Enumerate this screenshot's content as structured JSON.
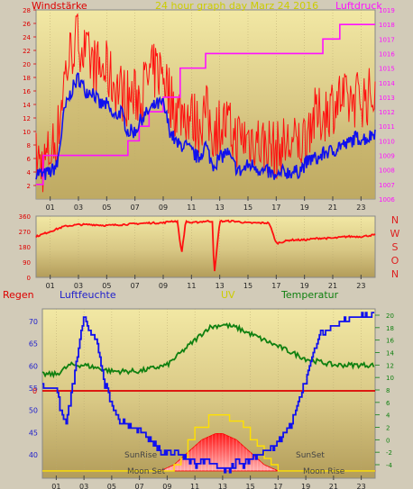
{
  "header": {
    "title": "24 hour graph day   Marz 24 2016",
    "wind_label": "Windstärke",
    "pressure_label": "Luftdruck"
  },
  "wind_axis": {
    "ticks": [
      "2",
      "4",
      "6",
      "8",
      "10",
      "12",
      "14",
      "16",
      "18",
      "20",
      "22",
      "24",
      "26",
      "28"
    ]
  },
  "pressure_axis": {
    "ticks": [
      "1006",
      "1007",
      "1008",
      "1009",
      "1010",
      "1011",
      "1012",
      "1013",
      "1014",
      "1015",
      "1016",
      "1017",
      "1018",
      "1019"
    ]
  },
  "hour_ticks": [
    "01",
    "03",
    "05",
    "07",
    "09",
    "11",
    "13",
    "15",
    "17",
    "19",
    "21",
    "23"
  ],
  "direction_axis": {
    "ticks": [
      "360",
      "270",
      "180",
      "90",
      "0"
    ],
    "compass": [
      "N",
      "W",
      "S",
      "O",
      "N"
    ]
  },
  "bottom_labels": {
    "rain": "Regen",
    "humidity": "Luftfeuchte",
    "uv": "UV",
    "temperature": "Temperatur",
    "sunrise": "SunRise",
    "sunset": "SunSet",
    "moonset": "Moon Set",
    "moonrise": "Moon Rise"
  },
  "humidity_axis": {
    "ticks": [
      "70",
      "65",
      "60",
      "55",
      "50",
      "45",
      "40"
    ],
    "rain_zero": "0"
  },
  "temperature_axis": {
    "ticks": [
      "20",
      "18",
      "16",
      "14",
      "12",
      "10",
      "8",
      "6",
      "4",
      "2",
      "0",
      "-2",
      "-4"
    ]
  },
  "colors": {
    "wind_avg": "#1010ee",
    "wind_gust": "#ff1010",
    "pressure": "#ff10ff",
    "direction": "#ff1010",
    "humidity": "#1010ee",
    "temperature": "#108010",
    "uv": "#ffe000",
    "solar": "#ff2020",
    "rain": "#dd0000",
    "compass": "#dd2020",
    "temp_label": "#108010",
    "humidity_label": "#2020cc",
    "uv_label": "#cccc00",
    "rain_label": "#dd0000"
  },
  "chart_data": [
    {
      "type": "line",
      "title": "24 hour graph day   Marz 24 2016",
      "x_unit": "hour",
      "xlim": [
        0,
        24
      ],
      "series": [
        {
          "name": "Windstärke",
          "axis": "left",
          "ylim": [
            0,
            28
          ],
          "x": [
            0,
            0.5,
            1,
            1.5,
            2,
            2.5,
            3,
            3.5,
            4,
            4.5,
            5,
            5.5,
            6,
            6.5,
            7,
            7.5,
            8,
            8.5,
            9,
            9.5,
            10,
            10.5,
            11,
            11.5,
            12,
            12.5,
            13,
            13.5,
            14,
            14.5,
            15,
            15.5,
            16,
            16.5,
            17,
            17.5,
            18,
            18.5,
            19,
            19.5,
            20,
            20.5,
            21,
            21.5,
            22,
            22.5,
            23,
            23.5,
            24
          ],
          "values": [
            4,
            3.5,
            4,
            5,
            13,
            16,
            18,
            16,
            16,
            14,
            14,
            12,
            13,
            10,
            10,
            12,
            13,
            14,
            14,
            10,
            8,
            8,
            7,
            6,
            8,
            5,
            6,
            7,
            5,
            4,
            5,
            5,
            4,
            4,
            3,
            4,
            4,
            4,
            5,
            6,
            6,
            7,
            7,
            8,
            8,
            9,
            9,
            9,
            10
          ]
        },
        {
          "name": "Wind gust",
          "axis": "left",
          "ylim": [
            0,
            28
          ],
          "x": [
            0,
            0.5,
            1,
            1.5,
            2,
            2.5,
            3,
            3.5,
            4,
            4.5,
            5,
            5.5,
            6,
            6.5,
            7,
            7.5,
            8,
            8.5,
            9,
            9.5,
            10,
            10.5,
            11,
            11.5,
            12,
            12.5,
            13,
            13.5,
            14,
            14.5,
            15,
            15.5,
            16,
            16.5,
            17,
            17.5,
            18,
            18.5,
            19,
            19.5,
            20,
            20.5,
            21,
            21.5,
            22,
            22.5,
            23,
            23.5,
            24
          ],
          "values": [
            6,
            5,
            7,
            9,
            18,
            22,
            24,
            21,
            20,
            19,
            19,
            17,
            16,
            15,
            15,
            16,
            18,
            19,
            19,
            15,
            13,
            13,
            12,
            11,
            13,
            10,
            11,
            11,
            9,
            9,
            9,
            9,
            8,
            8,
            7,
            8,
            8,
            8,
            9,
            12,
            12,
            13,
            14,
            15,
            14,
            15,
            15,
            15,
            16
          ]
        },
        {
          "name": "Luftdruck",
          "axis": "right",
          "ylim": [
            1006,
            1019
          ],
          "x": [
            0,
            0.4,
            0.5,
            2,
            3,
            4,
            5,
            6,
            6.5,
            7,
            7.3,
            8,
            9,
            10,
            10.2,
            11,
            12,
            12.4,
            13,
            13.5,
            14,
            15,
            16,
            17,
            17.5,
            18,
            19,
            20,
            20.3,
            21,
            21.5,
            22,
            23,
            24
          ],
          "values": [
            1007,
            1007,
            1009,
            1009,
            1009,
            1009,
            1009,
            1009,
            1010,
            1010,
            1011,
            1012,
            1013,
            1013,
            1015,
            1015,
            1016,
            1016,
            1016,
            1016,
            1016,
            1016,
            1016,
            1016,
            1016,
            1016,
            1016,
            1016,
            1017,
            1017,
            1018,
            1018,
            1018,
            1018
          ]
        }
      ]
    },
    {
      "type": "line",
      "x_unit": "hour",
      "xlim": [
        0,
        24
      ],
      "ylim": [
        0,
        360
      ],
      "series": [
        {
          "name": "Wind direction",
          "x": [
            0,
            1,
            2,
            3,
            4,
            5,
            6,
            7,
            8,
            9,
            9.5,
            10,
            10.3,
            10.6,
            11,
            12,
            12.5,
            12.6,
            13,
            14,
            15,
            16,
            16.5,
            17,
            18,
            19,
            20,
            21,
            22,
            23,
            24
          ],
          "values": [
            240,
            270,
            300,
            310,
            310,
            305,
            310,
            315,
            320,
            320,
            330,
            330,
            140,
            330,
            320,
            330,
            330,
            0,
            330,
            330,
            320,
            320,
            320,
            200,
            220,
            220,
            230,
            230,
            240,
            240,
            250
          ]
        }
      ]
    },
    {
      "type": "line",
      "x_unit": "hour",
      "xlim": [
        0,
        24
      ],
      "series": [
        {
          "name": "Luftfeuchte",
          "axis": "left",
          "ylim": [
            36,
            72
          ],
          "x": [
            0,
            1,
            1.3,
            1.7,
            2,
            2.5,
            3,
            3.5,
            4,
            4.5,
            5,
            5.5,
            6,
            6.5,
            7,
            7.5,
            8,
            8.5,
            9,
            9.5,
            10,
            10.5,
            11,
            11.5,
            12,
            12.5,
            13,
            13.5,
            14,
            14.5,
            15,
            15.5,
            16,
            16.5,
            17,
            17.5,
            18,
            18.5,
            19,
            19.5,
            20,
            20.5,
            21,
            21.5,
            22,
            22.5,
            23,
            23.5,
            24
          ],
          "values": [
            55,
            55,
            50,
            47,
            52,
            62,
            71,
            68,
            64,
            56,
            51,
            48,
            47,
            46,
            46,
            44,
            43,
            41,
            40,
            41,
            40,
            39,
            38,
            39,
            38,
            38,
            37,
            37,
            38,
            38,
            39,
            40,
            41,
            41,
            43,
            45,
            47,
            52,
            57,
            63,
            67,
            68,
            69,
            70,
            70,
            71,
            71,
            71,
            72
          ]
        },
        {
          "name": "Temperatur",
          "axis": "right",
          "ylim": [
            -5,
            21
          ],
          "x": [
            0,
            1,
            2,
            3,
            4,
            5,
            6,
            7,
            8,
            9,
            10,
            11,
            12,
            13,
            14,
            15,
            16,
            17,
            18,
            19,
            20,
            21,
            22,
            23,
            24
          ],
          "values": [
            10.5,
            10.5,
            12,
            12,
            11.5,
            11,
            11,
            11,
            11.5,
            12,
            14,
            16,
            18,
            18.5,
            18,
            17,
            16,
            15,
            14,
            13,
            12.5,
            12,
            12,
            12,
            12
          ]
        },
        {
          "name": "UV",
          "axis": "right",
          "ylim": [
            -5,
            21
          ],
          "x": [
            0,
            9,
            9.5,
            10,
            10.5,
            11,
            11.5,
            12,
            12.5,
            13,
            13.5,
            14,
            14.5,
            15,
            15.5,
            16,
            16.5,
            17,
            24
          ],
          "values": [
            -5,
            -5,
            -4,
            -3,
            0,
            2,
            2,
            4,
            4,
            4,
            3,
            3,
            2,
            0,
            -1,
            -3,
            -4,
            -5,
            -5
          ]
        },
        {
          "name": "Solar",
          "axis": "right",
          "ylim": [
            -5,
            21
          ],
          "x": [
            0,
            8.5,
            9,
            9.5,
            10,
            10.5,
            11,
            11.5,
            12,
            12.5,
            13,
            13.5,
            14,
            14.5,
            15,
            15.5,
            16,
            16.5,
            17,
            24
          ],
          "values": [
            -5,
            -5,
            -4.5,
            -4,
            -3,
            -2,
            -1,
            0,
            0.5,
            1,
            1,
            0.5,
            0,
            -1,
            -2,
            -3,
            -4,
            -4.5,
            -5,
            -5
          ]
        },
        {
          "name": "Regen",
          "values": [
            0
          ]
        }
      ]
    }
  ]
}
